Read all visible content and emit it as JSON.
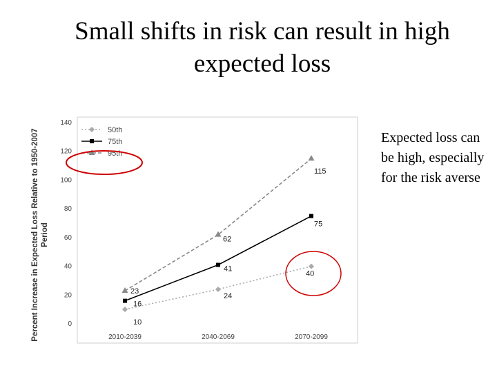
{
  "slide": {
    "title": "Small shifts in risk can result in high expected loss",
    "side_note": "Expected loss can be high, especially for the risk averse"
  },
  "chart_data": {
    "type": "line",
    "title": "",
    "xlabel": "",
    "ylabel": "Percent Increase in Expected Loss Relative to 1950-2007 Period",
    "categories": [
      "2010-2039",
      "2040-2069",
      "2070-2099"
    ],
    "ylim": [
      0,
      140
    ],
    "yticks": [
      0,
      20,
      40,
      60,
      80,
      100,
      120,
      140
    ],
    "legend_position": "top-left",
    "series": [
      {
        "name": "50th",
        "values": [
          10,
          24,
          40
        ],
        "color": "#aaaaaa",
        "marker": "diamond",
        "dash": "dotted"
      },
      {
        "name": "75th",
        "values": [
          16,
          41,
          75
        ],
        "color": "#000000",
        "marker": "square",
        "dash": "solid"
      },
      {
        "name": "95th",
        "values": [
          23,
          62,
          115
        ],
        "color": "#888888",
        "marker": "triangle",
        "dash": "dashed"
      }
    ]
  },
  "annotations": {
    "circle_color": "#cc0000",
    "circled_items": [
      "95th",
      "40"
    ]
  }
}
